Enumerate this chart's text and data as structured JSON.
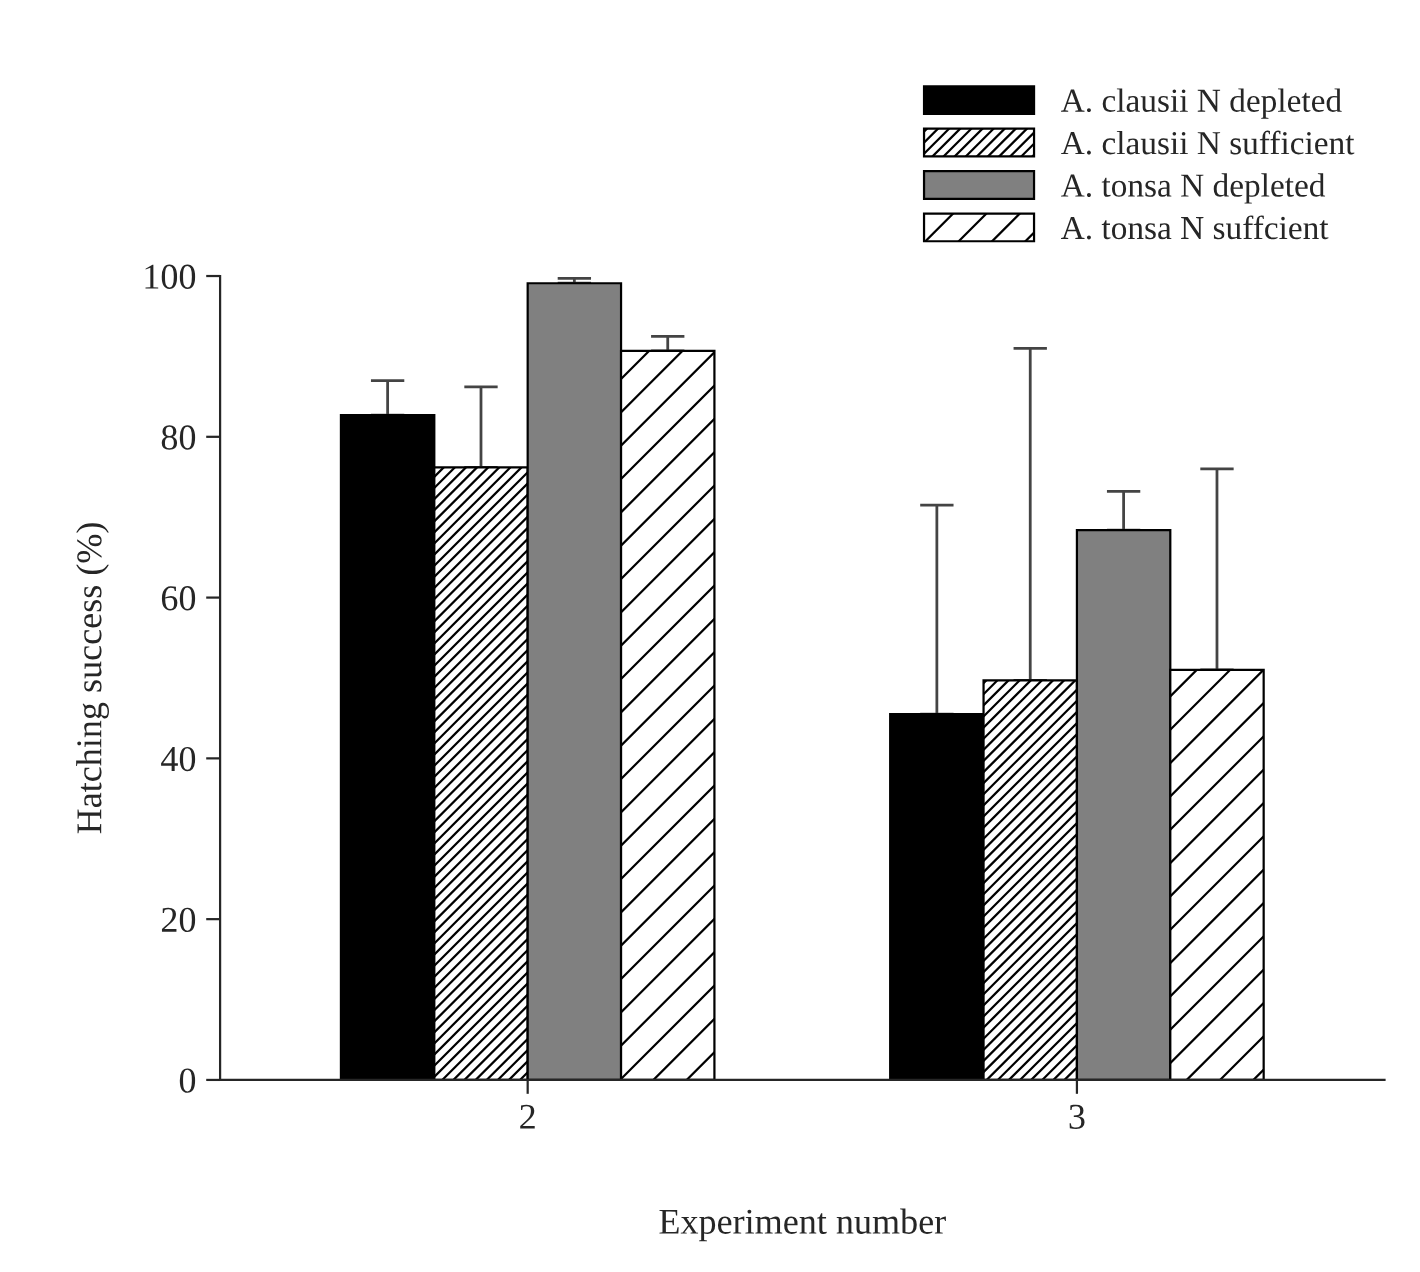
{
  "chart_data": {
    "type": "bar",
    "xlabel": "Experiment number",
    "ylabel": "Hatching success (%)",
    "categories": [
      "2",
      "3"
    ],
    "series": [
      {
        "name": "A. clausii N depleted",
        "color": "#000000",
        "values": [
          82.7,
          45.5
        ],
        "errors": [
          [
            82.7,
            87.0
          ],
          [
            45.5,
            71.5
          ]
        ]
      },
      {
        "name": "A. clausii N sufficient",
        "color": "#000000",
        "values": [
          76.2,
          49.7
        ],
        "errors": [
          [
            76.2,
            86.2
          ],
          [
            49.7,
            91.0
          ]
        ]
      },
      {
        "name": "A. tonsa N depleted",
        "color": "#808080",
        "values": [
          99.1,
          68.4
        ],
        "errors": [
          [
            99.1,
            99.7
          ],
          [
            68.4,
            73.2
          ]
        ]
      },
      {
        "name": "A. tonsa N suffcient",
        "color": "#000000",
        "values": [
          90.7,
          51.0
        ],
        "errors": [
          [
            90.7,
            92.5
          ],
          [
            51.0,
            76.0
          ]
        ]
      }
    ],
    "ylim": [
      0,
      100
    ],
    "yticks": [
      0,
      20,
      40,
      60,
      80,
      100
    ],
    "grid": false,
    "legend": "top right"
  }
}
